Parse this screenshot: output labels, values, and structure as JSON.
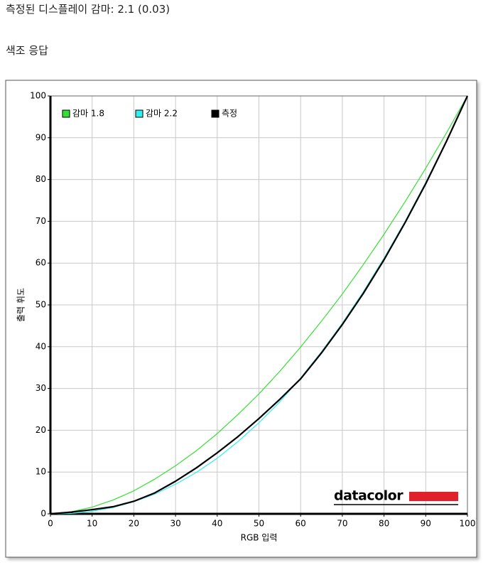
{
  "heading": "측정된 디스플레이 감마: 2.1 (0.03)",
  "section": "색조 응답",
  "chart_data": {
    "type": "line",
    "x_label": "RGB 입력",
    "y_label": "출력 휘도",
    "logo": "datacolor",
    "x": [
      0,
      5,
      10,
      15,
      20,
      25,
      30,
      35,
      40,
      45,
      50,
      55,
      60,
      65,
      70,
      75,
      80,
      85,
      90,
      95,
      100
    ],
    "series": [
      {
        "name": "감마 1.8",
        "color": "#33e033",
        "width": 1.2,
        "values": [
          0,
          0.5,
          1.6,
          3.3,
          5.5,
          8.3,
          11.5,
          15.1,
          19.2,
          23.8,
          28.7,
          34.1,
          39.9,
          46.1,
          52.6,
          59.6,
          66.9,
          74.6,
          82.7,
          91.2,
          100
        ]
      },
      {
        "name": "감마 2.2",
        "color": "#33eeee",
        "width": 1.2,
        "values": [
          0,
          0.1,
          0.6,
          1.5,
          2.9,
          4.7,
          7.1,
          9.9,
          13.3,
          17.3,
          21.8,
          26.8,
          32.5,
          38.8,
          45.6,
          53.1,
          61.2,
          69.9,
          79.3,
          89.3,
          100
        ]
      },
      {
        "name": "측정",
        "color": "#000000",
        "width": 2.2,
        "values": [
          0,
          0.4,
          1,
          1.7,
          3,
          5,
          7.8,
          11,
          14.6,
          18.5,
          22.8,
          27.4,
          32.3,
          38.5,
          45.3,
          52.7,
          60.8,
          69.6,
          79,
          89.2,
          100
        ]
      }
    ],
    "xlim": [
      0,
      100
    ],
    "ylim": [
      0,
      100
    ],
    "xticks": [
      0,
      10,
      20,
      30,
      40,
      50,
      60,
      70,
      80,
      90,
      100
    ],
    "yticks": [
      0,
      10,
      20,
      30,
      40,
      50,
      60,
      70,
      80,
      90,
      100
    ],
    "grid": true,
    "legend": "top-left"
  }
}
